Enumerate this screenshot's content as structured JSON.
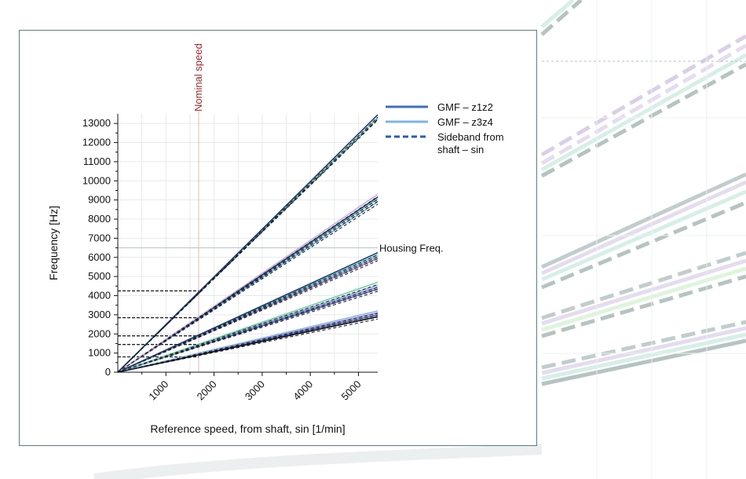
{
  "chart_data": {
    "type": "line",
    "title": "",
    "xlabel": "Reference speed, from shaft, sin [1/min]",
    "ylabel": "Frequency [Hz]",
    "xlim": [
      0,
      5400
    ],
    "ylim": [
      0,
      13500
    ],
    "xticks": [
      "1000",
      "2000",
      "3000",
      "4000",
      "5000"
    ],
    "yticks": [
      "0",
      "1000",
      "2000",
      "3000",
      "4000",
      "5000",
      "6000",
      "7000",
      "8000",
      "9000",
      "10000",
      "11000",
      "12000",
      "13000"
    ],
    "grid": true,
    "legend_position": "top-right",
    "legend": [
      {
        "label": "GMF – z1z2",
        "color": "#3b6fc6",
        "dash": "solid"
      },
      {
        "label": "GMF – z3z4",
        "color": "#7fb4ea",
        "dash": "solid"
      },
      {
        "label": "Sideband from shaft – sin",
        "color": "#2a5cb8",
        "dash": "dashed"
      }
    ],
    "vertical_marker": {
      "label": "Nominal speed",
      "x": 1680
    },
    "horizontal_marker": {
      "label": "Housing Freq.",
      "y": 6500
    },
    "series_groups": [
      {
        "slope": 2.5,
        "end_values": [
          2900,
          3000,
          3100,
          3200
        ]
      },
      {
        "slope": 4.2,
        "end_values": [
          4350,
          4450,
          4550,
          4700
        ]
      },
      {
        "slope": 5.6,
        "end_values": [
          5950,
          6050,
          6150,
          6250
        ]
      },
      {
        "slope": 8.35,
        "end_values": [
          8900,
          9050,
          9150,
          9300
        ]
      },
      {
        "slope": 12.5,
        "end_values": [
          13300,
          13450
        ]
      }
    ],
    "nominal_speed_levels": [
      800,
      1450,
      1900,
      2850,
      4250
    ]
  }
}
